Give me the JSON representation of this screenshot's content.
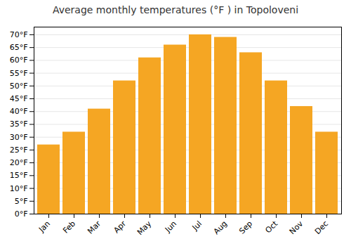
{
  "chart_data": {
    "type": "bar",
    "title": "Average monthly temperatures (°F ) in Topoloveni",
    "categories": [
      "Jan",
      "Feb",
      "Mar",
      "Apr",
      "May",
      "Jun",
      "Jul",
      "Aug",
      "Sep",
      "Oct",
      "Nov",
      "Dec"
    ],
    "values": [
      27,
      32,
      41,
      52,
      61,
      66,
      70,
      69,
      63,
      52,
      42,
      32
    ],
    "color": "#F5A623",
    "ylim": [
      0,
      73
    ],
    "yticks": [
      {
        "value": 0,
        "label": "0°F"
      },
      {
        "value": 5,
        "label": "5°F"
      },
      {
        "value": 10,
        "label": "10°F"
      },
      {
        "value": 15,
        "label": "15°F"
      },
      {
        "value": 20,
        "label": "20°F"
      },
      {
        "value": 25,
        "label": "25°F"
      },
      {
        "value": 30,
        "label": "30°F"
      },
      {
        "value": 35,
        "label": "35°F"
      },
      {
        "value": 40,
        "label": "40°F"
      },
      {
        "value": 45,
        "label": "45°F"
      },
      {
        "value": 50,
        "label": "50°F"
      },
      {
        "value": 55,
        "label": "55°F"
      },
      {
        "value": 60,
        "label": "60°F"
      },
      {
        "value": 65,
        "label": "65°F"
      },
      {
        "value": 70,
        "label": "70°F"
      }
    ],
    "grid": true
  }
}
